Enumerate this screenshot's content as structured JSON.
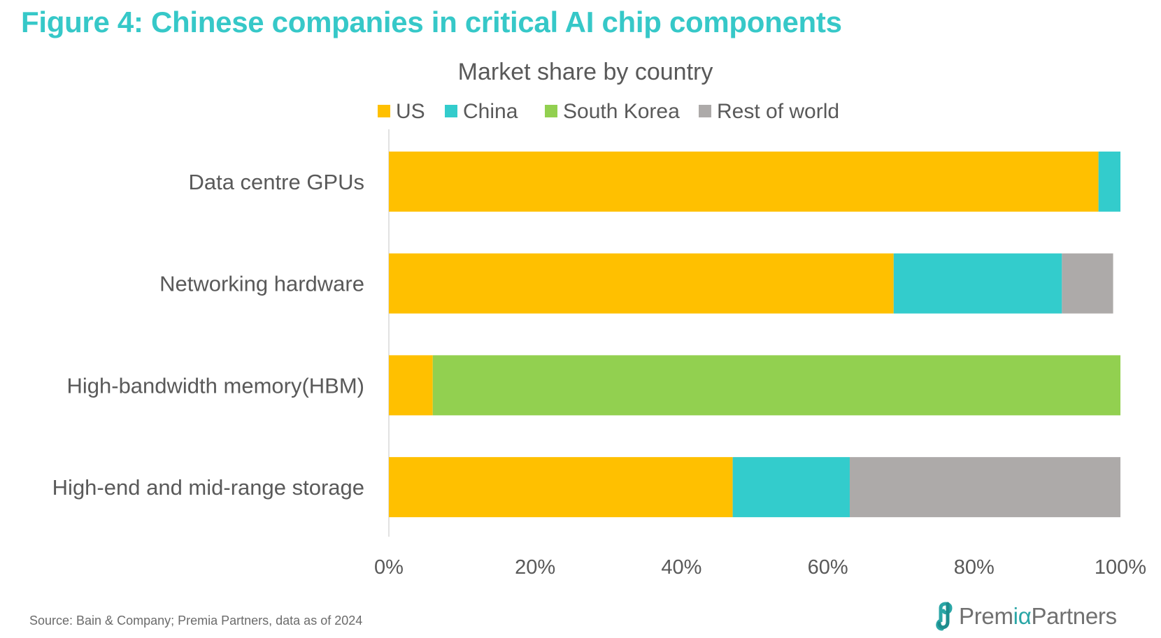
{
  "figure_title": "Figure 4: Chinese companies in critical AI chip components",
  "source": "Source: Bain & Company; Premia Partners, data as of 2024",
  "logo": {
    "prefix": "Prem",
    "alpha": "iα",
    "suffix": "Partners",
    "icon": "premia-link-icon"
  },
  "colors": {
    "title": "#36c8c8",
    "US": "#FFC000",
    "China": "#33CCCC",
    "South Korea": "#92D050",
    "Rest of world": "#ADAAA9"
  },
  "chart_data": {
    "type": "bar",
    "orientation": "horizontal",
    "stacked": true,
    "title": "Market share by country",
    "xlabel": "",
    "ylabel": "",
    "xlim": [
      0,
      100
    ],
    "x_ticks": [
      "0%",
      "20%",
      "40%",
      "60%",
      "80%",
      "100%"
    ],
    "x_tick_values": [
      0,
      20,
      40,
      60,
      80,
      100
    ],
    "grid": false,
    "legend_position": "top",
    "categories": [
      "Data centre GPUs",
      "Networking hardware",
      "High-bandwidth memory(HBM)",
      "High-end and mid-range storage"
    ],
    "series": [
      {
        "name": "US",
        "color": "#FFC000",
        "values": [
          97,
          69,
          6,
          47
        ]
      },
      {
        "name": "China",
        "color": "#33CCCC",
        "values": [
          3,
          23,
          0,
          16
        ]
      },
      {
        "name": "South Korea",
        "color": "#92D050",
        "values": [
          0,
          0,
          94,
          0
        ]
      },
      {
        "name": "Rest of world",
        "color": "#ADAAA9",
        "values": [
          0,
          7,
          0,
          37
        ]
      }
    ]
  }
}
